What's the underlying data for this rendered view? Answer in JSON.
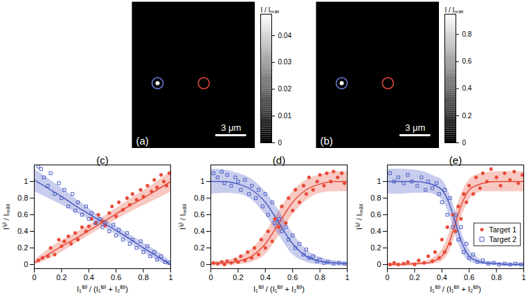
{
  "chart_data": [
    {
      "type": "image",
      "title": "(a)",
      "tick_labels": false,
      "xlim": [
        0,
        12
      ],
      "ylim": [
        0,
        14.4
      ],
      "spots": [
        {
          "x": 2.5,
          "y": 8.0,
          "value": 0.045
        }
      ],
      "targets": [
        {
          "x": 2.5,
          "y": 8.0,
          "color": "#6b7fe0"
        },
        {
          "x": 7.0,
          "y": 8.0,
          "color": "#e84b37"
        }
      ],
      "scale_bar": {
        "length": 3,
        "label": "3 μm"
      },
      "colorbar": {
        "label": "I / Iₘₐₓ",
        "range": [
          0,
          0.048
        ],
        "ticks": [
          0,
          0.01,
          0.02,
          0.03,
          0.04
        ]
      }
    },
    {
      "type": "image",
      "title": "(b)",
      "tick_labels": false,
      "xlim": [
        0,
        12
      ],
      "ylim": [
        0,
        14.4
      ],
      "spots": [
        {
          "x": 2.5,
          "y": 8.0,
          "value": 0.95
        }
      ],
      "targets": [
        {
          "x": 2.5,
          "y": 8.0,
          "color": "#6b7fe0"
        },
        {
          "x": 7.0,
          "y": 8.0,
          "color": "#e84b37"
        }
      ],
      "scale_bar": {
        "length": 3,
        "label": "3 μm"
      },
      "colorbar": {
        "label": "I / Iₘₐₓ",
        "range": [
          0,
          0.95
        ],
        "ticks": [
          0,
          0.2,
          0.4,
          0.6,
          0.8
        ]
      }
    },
    {
      "type": "scatter",
      "title": "(c)",
      "x_label": "I₁⁽⁰⁾ / (I₁⁽⁰⁾ + I₂⁽⁰⁾)",
      "y_label": "I⁽¹⁾ / Iₘₐₓ",
      "xlim": [
        0,
        1
      ],
      "ylim": [
        -0.05,
        1.2
      ],
      "xticks": [
        0,
        0.2,
        0.4,
        0.6,
        0.8,
        1
      ],
      "yticks": [
        0,
        0.2,
        0.4,
        0.6,
        0.8,
        1
      ],
      "grid": false,
      "series": [
        {
          "color": "#e84b37",
          "marker": "circle",
          "x": [
            0.03,
            0.06,
            0.1,
            0.12,
            0.15,
            0.18,
            0.2,
            0.22,
            0.25,
            0.27,
            0.3,
            0.32,
            0.35,
            0.38,
            0.4,
            0.42,
            0.45,
            0.47,
            0.5,
            0.52,
            0.55,
            0.57,
            0.6,
            0.62,
            0.65,
            0.68,
            0.7,
            0.72,
            0.75,
            0.78,
            0.8,
            0.83,
            0.86,
            0.88,
            0.9,
            0.93,
            0.95,
            0.97,
            0.99
          ],
          "values": [
            0.05,
            0.08,
            0.1,
            0.2,
            0.12,
            0.3,
            0.22,
            0.28,
            0.34,
            0.25,
            0.38,
            0.3,
            0.45,
            0.4,
            0.46,
            0.55,
            0.5,
            0.6,
            0.52,
            0.47,
            0.62,
            0.7,
            0.58,
            0.75,
            0.66,
            0.8,
            0.72,
            0.85,
            0.78,
            0.9,
            0.82,
            0.95,
            0.88,
            1.02,
            0.93,
            1.08,
            1.0,
            0.95,
            1.1
          ],
          "fit": {
            "x": [
              0,
              0.1,
              0.2,
              0.3,
              0.4,
              0.5,
              0.6,
              0.7,
              0.8,
              0.9,
              1
            ],
            "values": [
              0.02,
              0.12,
              0.22,
              0.31,
              0.41,
              0.51,
              0.61,
              0.71,
              0.8,
              0.9,
              1.0
            ],
            "lower": [
              0,
              0.06,
              0.15,
              0.25,
              0.35,
              0.45,
              0.54,
              0.63,
              0.71,
              0.79,
              0.87
            ],
            "upper": [
              0.05,
              0.18,
              0.29,
              0.38,
              0.47,
              0.57,
              0.68,
              0.79,
              0.89,
              1.0,
              1.12
            ]
          }
        },
        {
          "color": "#4a5bc4",
          "marker": "square",
          "x": [
            0.03,
            0.05,
            0.07,
            0.1,
            0.12,
            0.15,
            0.18,
            0.2,
            0.22,
            0.25,
            0.28,
            0.3,
            0.32,
            0.35,
            0.38,
            0.4,
            0.42,
            0.45,
            0.48,
            0.5,
            0.52,
            0.55,
            0.58,
            0.6,
            0.62,
            0.65,
            0.68,
            0.7,
            0.72,
            0.75,
            0.78,
            0.8,
            0.83,
            0.85,
            0.88,
            0.9,
            0.93,
            0.96,
            0.99
          ],
          "values": [
            1.18,
            1.15,
            1.05,
            0.95,
            1.1,
            0.85,
            0.98,
            0.8,
            0.9,
            0.7,
            0.85,
            0.65,
            0.75,
            0.6,
            0.7,
            0.55,
            0.62,
            0.5,
            0.55,
            0.45,
            0.5,
            0.4,
            0.48,
            0.35,
            0.42,
            0.3,
            0.38,
            0.25,
            0.3,
            0.2,
            0.28,
            0.15,
            0.22,
            0.1,
            0.15,
            0.06,
            0.1,
            0.03,
            0.02
          ],
          "fit": {
            "x": [
              0,
              0.1,
              0.2,
              0.3,
              0.4,
              0.5,
              0.6,
              0.7,
              0.8,
              0.9,
              1
            ],
            "values": [
              1.02,
              0.92,
              0.82,
              0.71,
              0.61,
              0.51,
              0.41,
              0.31,
              0.2,
              0.1,
              0.0
            ],
            "lower": [
              0.88,
              0.8,
              0.72,
              0.63,
              0.55,
              0.46,
              0.36,
              0.26,
              0.15,
              0.05,
              -0.02
            ],
            "upper": [
              1.15,
              1.04,
              0.92,
              0.8,
              0.68,
              0.56,
              0.46,
              0.36,
              0.26,
              0.16,
              0.04
            ]
          }
        }
      ]
    },
    {
      "type": "scatter",
      "title": "(d)",
      "x_label": "I₁⁽⁰⁾ / (I₁⁽⁰⁾ + I₂⁽⁰⁾)",
      "y_label": "I⁽¹⁾ / Iₘₐₓ",
      "xlim": [
        0,
        1
      ],
      "ylim": [
        -0.05,
        1.2
      ],
      "xticks": [
        0,
        0.2,
        0.4,
        0.6,
        0.8,
        1
      ],
      "yticks": [
        0,
        0.2,
        0.4,
        0.6,
        0.8,
        1
      ],
      "grid": false,
      "series": [
        {
          "color": "#e84b37",
          "marker": "circle",
          "x": [
            0.02,
            0.05,
            0.08,
            0.1,
            0.12,
            0.15,
            0.18,
            0.2,
            0.22,
            0.25,
            0.27,
            0.3,
            0.32,
            0.35,
            0.37,
            0.4,
            0.42,
            0.45,
            0.47,
            0.5,
            0.52,
            0.55,
            0.57,
            0.6,
            0.62,
            0.65,
            0.68,
            0.7,
            0.72,
            0.75,
            0.78,
            0.8,
            0.83,
            0.85,
            0.88,
            0.9,
            0.93,
            0.96,
            0.98
          ],
          "values": [
            0.02,
            0.01,
            0.03,
            0.0,
            0.04,
            0.02,
            0.06,
            0.03,
            0.1,
            0.05,
            0.15,
            0.08,
            0.2,
            0.12,
            0.3,
            0.2,
            0.4,
            0.28,
            0.55,
            0.45,
            0.7,
            0.5,
            0.8,
            0.65,
            0.9,
            0.75,
            0.95,
            0.85,
            1.05,
            0.9,
            1.0,
            1.08,
            0.95,
            1.1,
            1.0,
            1.12,
            1.05,
            1.1,
            0.98
          ],
          "fit": {
            "x": [
              0,
              0.1,
              0.2,
              0.3,
              0.4,
              0.5,
              0.6,
              0.7,
              0.8,
              0.9,
              1
            ],
            "values": [
              0.01,
              0.02,
              0.04,
              0.1,
              0.25,
              0.5,
              0.75,
              0.9,
              0.97,
              1.0,
              1.0
            ],
            "lower": [
              -0.02,
              -0.01,
              0.0,
              0.03,
              0.12,
              0.35,
              0.6,
              0.77,
              0.86,
              0.88,
              0.88
            ],
            "upper": [
              0.03,
              0.05,
              0.09,
              0.19,
              0.38,
              0.65,
              0.88,
              1.02,
              1.08,
              1.12,
              1.12
            ]
          }
        },
        {
          "color": "#4a5bc4",
          "marker": "square",
          "x": [
            0.02,
            0.05,
            0.08,
            0.1,
            0.12,
            0.15,
            0.18,
            0.2,
            0.22,
            0.25,
            0.28,
            0.3,
            0.33,
            0.35,
            0.38,
            0.4,
            0.42,
            0.45,
            0.47,
            0.5,
            0.52,
            0.55,
            0.57,
            0.6,
            0.62,
            0.65,
            0.68,
            0.7,
            0.72,
            0.75,
            0.78,
            0.8,
            0.83,
            0.86,
            0.9,
            0.94,
            0.98
          ],
          "values": [
            1.1,
            1.05,
            1.12,
            0.98,
            1.08,
            0.95,
            1.05,
            1.0,
            0.9,
            1.02,
            0.85,
            0.95,
            0.8,
            0.9,
            0.7,
            0.85,
            0.6,
            0.75,
            0.5,
            0.55,
            0.4,
            0.45,
            0.3,
            0.35,
            0.2,
            0.25,
            0.12,
            0.18,
            0.08,
            0.1,
            0.04,
            0.06,
            0.02,
            0.03,
            0.01,
            0.02,
            0.01
          ],
          "fit": {
            "x": [
              0,
              0.1,
              0.2,
              0.3,
              0.4,
              0.5,
              0.6,
              0.7,
              0.8,
              0.9,
              1
            ],
            "values": [
              1.0,
              1.0,
              0.97,
              0.9,
              0.75,
              0.5,
              0.25,
              0.1,
              0.04,
              0.02,
              0.01
            ],
            "lower": [
              0.85,
              0.86,
              0.85,
              0.78,
              0.6,
              0.35,
              0.12,
              0.03,
              0.0,
              -0.01,
              -0.02
            ],
            "upper": [
              1.15,
              1.14,
              1.1,
              1.03,
              0.88,
              0.65,
              0.38,
              0.18,
              0.09,
              0.05,
              0.03
            ]
          }
        }
      ]
    },
    {
      "type": "scatter",
      "title": "(e)",
      "x_label": "I₁⁽⁰⁾ / (I₁⁽⁰⁾ + I₂⁽⁰⁾)",
      "y_label": "I⁽¹⁾ / Iₘₐₓ",
      "xlim": [
        0,
        1
      ],
      "ylim": [
        -0.05,
        1.2
      ],
      "xticks": [
        0,
        0.2,
        0.4,
        0.6,
        0.8,
        1
      ],
      "yticks": [
        0,
        0.2,
        0.4,
        0.6,
        0.8,
        1
      ],
      "grid": false,
      "legend": "right",
      "series": [
        {
          "name": "Target 1",
          "color": "#e84b37",
          "marker": "circle",
          "x": [
            0.02,
            0.05,
            0.08,
            0.12,
            0.15,
            0.2,
            0.23,
            0.27,
            0.3,
            0.33,
            0.35,
            0.38,
            0.4,
            0.42,
            0.44,
            0.46,
            0.48,
            0.5,
            0.52,
            0.54,
            0.56,
            0.58,
            0.6,
            0.63,
            0.65,
            0.68,
            0.7,
            0.73,
            0.76,
            0.8,
            0.83,
            0.86,
            0.9,
            0.93,
            0.96,
            0.99
          ],
          "values": [
            0.0,
            0.02,
            0.0,
            0.01,
            0.03,
            0.0,
            0.05,
            0.02,
            0.1,
            0.04,
            0.15,
            0.08,
            0.3,
            0.15,
            0.45,
            0.25,
            0.6,
            0.4,
            0.7,
            0.55,
            0.85,
            0.75,
            0.95,
            0.85,
            1.05,
            0.92,
            1.1,
            1.0,
            1.15,
            1.05,
            0.95,
            1.1,
            1.02,
            1.12,
            0.98,
            1.08
          ],
          "fit": {
            "x": [
              0,
              0.1,
              0.2,
              0.3,
              0.35,
              0.4,
              0.45,
              0.5,
              0.55,
              0.6,
              0.65,
              0.7,
              0.8,
              0.9,
              1
            ],
            "values": [
              0,
              0,
              0.01,
              0.02,
              0.05,
              0.1,
              0.25,
              0.5,
              0.75,
              0.9,
              0.95,
              0.98,
              1,
              1,
              1
            ],
            "lower": [
              -0.02,
              -0.02,
              -0.01,
              0,
              0.01,
              0.04,
              0.14,
              0.36,
              0.6,
              0.78,
              0.85,
              0.88,
              0.88,
              0.88,
              0.88
            ],
            "upper": [
              0.02,
              0.02,
              0.03,
              0.05,
              0.1,
              0.18,
              0.36,
              0.64,
              0.88,
              1.02,
              1.08,
              1.1,
              1.12,
              1.12,
              1.12
            ]
          }
        },
        {
          "name": "Target 2",
          "color": "#4a5bc4",
          "marker": "square",
          "x": [
            0.02,
            0.05,
            0.08,
            0.12,
            0.15,
            0.18,
            0.22,
            0.25,
            0.28,
            0.3,
            0.33,
            0.36,
            0.38,
            0.4,
            0.42,
            0.44,
            0.46,
            0.48,
            0.5,
            0.52,
            0.54,
            0.56,
            0.58,
            0.6,
            0.63,
            0.66,
            0.7,
            0.74,
            0.78,
            0.82,
            0.86,
            0.9,
            0.94,
            0.98
          ],
          "values": [
            1.1,
            1.0,
            1.05,
            0.98,
            1.08,
            1.0,
            0.95,
            1.05,
            0.9,
            1.0,
            0.92,
            0.98,
            0.85,
            0.75,
            0.9,
            0.6,
            0.8,
            0.45,
            0.6,
            0.3,
            0.45,
            0.15,
            0.25,
            0.08,
            0.12,
            0.03,
            0.05,
            0.01,
            0.02,
            0.0,
            0.01,
            0.0,
            0.01,
            0.0
          ],
          "fit": {
            "x": [
              0,
              0.1,
              0.2,
              0.3,
              0.35,
              0.4,
              0.45,
              0.5,
              0.55,
              0.6,
              0.65,
              0.7,
              0.8,
              0.9,
              1
            ],
            "values": [
              1,
              1,
              1,
              0.98,
              0.95,
              0.9,
              0.75,
              0.5,
              0.25,
              0.1,
              0.05,
              0.02,
              0.01,
              0,
              0
            ],
            "lower": [
              0.85,
              0.85,
              0.86,
              0.86,
              0.84,
              0.78,
              0.62,
              0.36,
              0.14,
              0.04,
              0.01,
              0,
              -0.01,
              -0.02,
              -0.02
            ],
            "upper": [
              1.15,
              1.15,
              1.14,
              1.1,
              1.06,
              1.02,
              0.88,
              0.64,
              0.36,
              0.18,
              0.1,
              0.05,
              0.03,
              0.02,
              0.02
            ]
          }
        }
      ]
    }
  ]
}
